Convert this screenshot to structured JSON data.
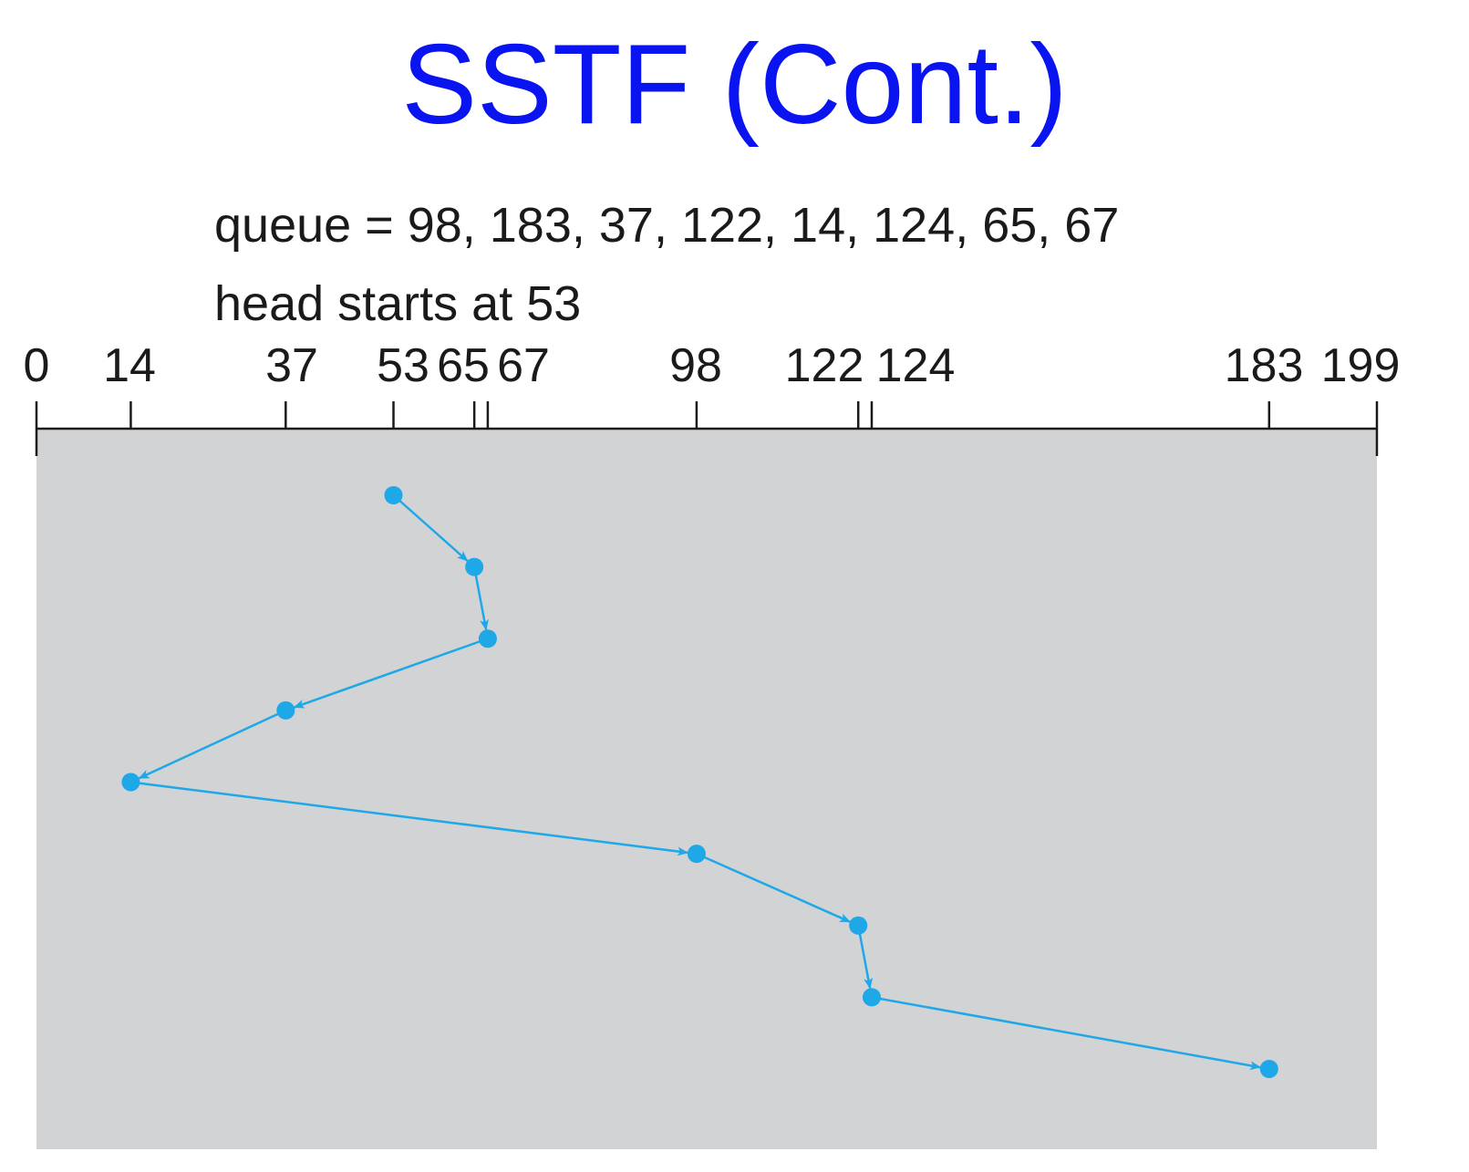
{
  "title": "SSTF (Cont.)",
  "queue_text": "queue = 98, 183, 37, 122, 14, 124, 65, 67",
  "head_text": "head starts at 53",
  "colors": {
    "title": "#0a14f0",
    "path": "#1ea8e8",
    "panel": "#d1d3d4",
    "axis": "#1a1a1a"
  },
  "axis": {
    "min": 0,
    "max": 199,
    "ticks": [
      0,
      14,
      37,
      53,
      65,
      67,
      98,
      122,
      124,
      183,
      199
    ],
    "tick_labels": [
      "0",
      "14",
      "37",
      "53",
      "65",
      "67",
      "98",
      "122",
      "124",
      "183",
      "199"
    ]
  },
  "service_order": [
    53,
    65,
    67,
    37,
    14,
    98,
    122,
    124,
    183
  ]
}
